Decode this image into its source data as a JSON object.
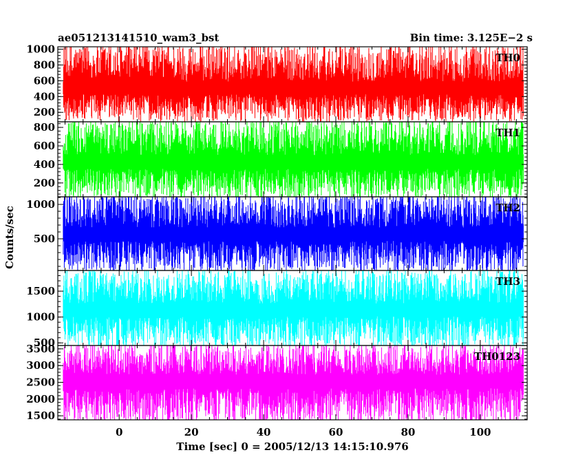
{
  "header": {
    "left_title": "ae051213141510_wam3_bst",
    "right_title": "Bin time: 3.125E−2 s"
  },
  "axes": {
    "ylabel": "Counts/sec",
    "xlabel": "Time [sec] 0 = 2005/12/13 14:15:10.976",
    "x_range": [
      -17,
      113
    ],
    "x_ticks": [
      0,
      20,
      40,
      60,
      80,
      100
    ],
    "x_tick_labels": [
      "0",
      "20",
      "40",
      "60",
      "80",
      "100"
    ]
  },
  "chart_data": [
    {
      "type": "line",
      "name": "TH0",
      "color": "#ff0000",
      "x_start": -15.5,
      "x_end": 112,
      "ylim": [
        80,
        1030
      ],
      "y_ticks": [
        200,
        400,
        600,
        800,
        1000
      ],
      "y_tick_labels": [
        "200",
        "400",
        "600",
        "800",
        "1000"
      ],
      "envelope": {
        "low": 150,
        "high": 1000,
        "typical_low": 300,
        "typical_high": 750,
        "mean": 500
      }
    },
    {
      "type": "line",
      "name": "TH1",
      "color": "#00ff00",
      "x_start": -15.5,
      "x_end": 112,
      "ylim": [
        50,
        860
      ],
      "y_ticks": [
        200,
        400,
        600,
        800
      ],
      "y_tick_labels": [
        "200",
        "400",
        "600",
        "800"
      ],
      "envelope": {
        "low": 90,
        "high": 820,
        "typical_low": 230,
        "typical_high": 650,
        "mean": 420
      }
    },
    {
      "type": "line",
      "name": "TH2",
      "color": "#0000ff",
      "x_start": -15.5,
      "x_end": 112,
      "ylim": [
        40,
        1110
      ],
      "y_ticks": [
        500,
        1000
      ],
      "y_tick_labels": [
        "500",
        "1000"
      ],
      "envelope": {
        "low": 90,
        "high": 1080,
        "typical_low": 300,
        "typical_high": 850,
        "mean": 560
      }
    },
    {
      "type": "line",
      "name": "TH3",
      "color": "#00ffff",
      "x_start": -15.5,
      "x_end": 112,
      "ylim": [
        450,
        1900
      ],
      "y_ticks": [
        500,
        1000,
        1500
      ],
      "y_tick_labels": [
        "500",
        "1000",
        "1500"
      ],
      "envelope": {
        "low": 500,
        "high": 1800,
        "typical_low": 800,
        "typical_high": 1500,
        "mean": 1130
      }
    },
    {
      "type": "line",
      "name": "TH0123",
      "color": "#ff00ff",
      "x_start": -15.5,
      "x_end": 112,
      "ylim": [
        1380,
        3600
      ],
      "y_ticks": [
        1500,
        2000,
        2500,
        3000,
        3500
      ],
      "y_tick_labels": [
        "1500",
        "2000",
        "2500",
        "3000",
        "3500"
      ],
      "envelope": {
        "low": 1450,
        "high": 3500,
        "typical_low": 1900,
        "typical_high": 3050,
        "mean": 2550
      }
    }
  ]
}
